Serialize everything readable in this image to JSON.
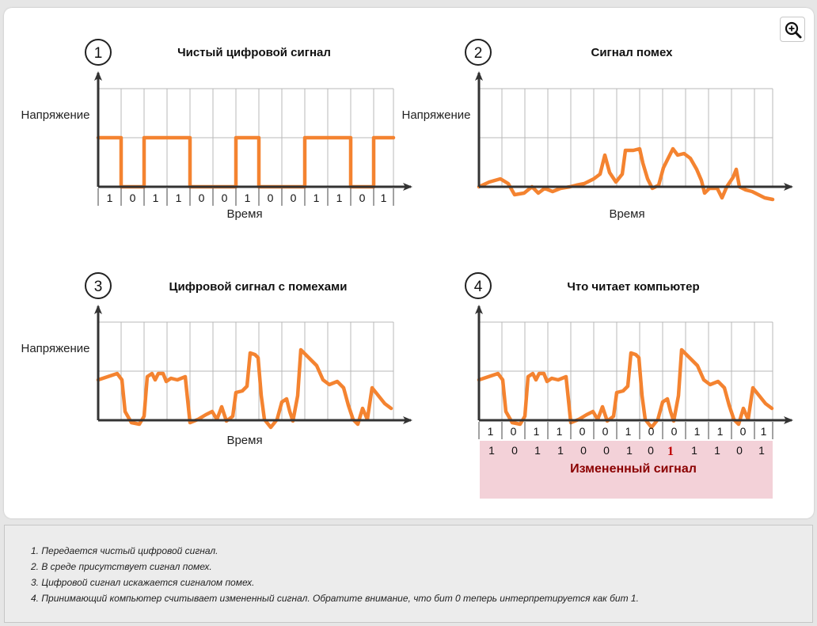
{
  "zoom_icon": "zoom-in-icon",
  "colors": {
    "signal": "#f48330",
    "changed_bit": "#c00000",
    "changed_label": "#8b0000",
    "changed_band": "#f3d1d8"
  },
  "panels": [
    {
      "number": "1",
      "title": "Чистый цифровой сигнал",
      "ylabel": "Напряжение",
      "xlabel": "Время",
      "bits": [
        "1",
        "0",
        "1",
        "1",
        "0",
        "0",
        "1",
        "0",
        "0",
        "1",
        "1",
        "0",
        "1"
      ]
    },
    {
      "number": "2",
      "title": "Сигнал помех",
      "ylabel": "Напряжение",
      "xlabel": "Время"
    },
    {
      "number": "3",
      "title": "Цифровой сигнал с помехами",
      "ylabel": "Напряжение",
      "xlabel": "Время"
    },
    {
      "number": "4",
      "title": "Что читает компьютер",
      "sent_bits": [
        "1",
        "0",
        "1",
        "1",
        "0",
        "0",
        "1",
        "0",
        "0",
        "1",
        "1",
        "0",
        "1"
      ],
      "read_bits": [
        "1",
        "0",
        "1",
        "1",
        "0",
        "0",
        "1",
        "0",
        "1",
        "1",
        "1",
        "0",
        "1"
      ],
      "changed_index": 8,
      "changed_label": "Измененный сигнал"
    }
  ],
  "notes": [
    "1. Передается чистый цифровой сигнал.",
    "2. В среде присутствует сигнал помех.",
    "3. Цифровой сигнал искажается сигналом помех.",
    "4. Принимающий компьютер считывает измененный сигнал. Обратите внимание, что бит 0 теперь интерпретируется как бит 1."
  ]
}
